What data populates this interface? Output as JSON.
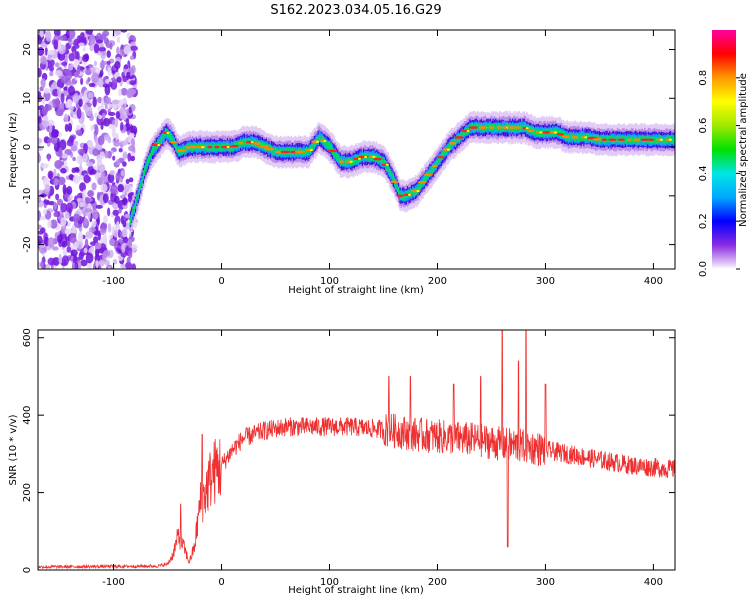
{
  "title": "S162.2023.034.05.16.G29",
  "colors": {
    "snr_line": "#ee3030",
    "spectrum_noise": "#7a1ee0",
    "axes": "#000000"
  },
  "chart_data": [
    {
      "type": "heatmap",
      "xlabel": "Height of straight line (km)",
      "ylabel": "Frequency (Hz)",
      "xlim": [
        -170,
        420
      ],
      "ylim": [
        -25,
        24
      ],
      "x_ticks": [
        -100,
        0,
        100,
        200,
        300,
        400
      ],
      "y_ticks": [
        -20,
        -10,
        0,
        10,
        20
      ],
      "colorbar": {
        "label": "Normalized spectral amplitude",
        "range": [
          0,
          1
        ],
        "ticks": [
          0.0,
          0.2,
          0.4,
          0.6,
          0.8
        ],
        "colormap": "rainbow"
      },
      "ridge": {
        "x": [
          -85,
          -78,
          -72,
          -65,
          -58,
          -52,
          -47,
          -40,
          -30,
          -20,
          -10,
          0,
          10,
          20,
          30,
          40,
          50,
          60,
          70,
          80,
          90,
          95,
          100,
          110,
          120,
          130,
          140,
          150,
          160,
          165,
          170,
          180,
          190,
          200,
          210,
          220,
          230,
          240,
          250,
          260,
          270,
          280,
          290,
          300,
          310,
          320,
          330,
          340,
          350,
          360,
          380,
          400,
          420
        ],
        "y": [
          -15,
          -10,
          -5,
          -1,
          1,
          3,
          2,
          -1,
          0,
          0,
          0,
          0,
          0,
          1,
          1,
          0,
          -1,
          -1,
          -1,
          -1,
          2,
          1,
          0,
          -3,
          -3,
          -2,
          -2,
          -3,
          -7,
          -10,
          -10,
          -9,
          -6,
          -3,
          0,
          2,
          4,
          4,
          4,
          4,
          4,
          4,
          3,
          3,
          3,
          2,
          2,
          2,
          1.5,
          1.5,
          1.5,
          1.5,
          1.5
        ]
      },
      "noise_region_x": [
        -170,
        -80
      ]
    },
    {
      "type": "line",
      "xlabel": "Height of straight line (km)",
      "ylabel": "SNR (10 * v/v)",
      "xlim": [
        -170,
        420
      ],
      "ylim": [
        0,
        620
      ],
      "x_ticks": [
        -100,
        0,
        100,
        200,
        300,
        400
      ],
      "y_ticks": [
        0,
        200,
        400,
        600
      ],
      "series": [
        {
          "envelope_x": [
            -170,
            -60,
            -50,
            -45,
            -40,
            -35,
            -30,
            -25,
            -20,
            -15,
            -10,
            -5,
            0,
            10,
            20,
            40,
            60,
            80,
            100,
            120,
            140,
            160,
            180,
            200,
            220,
            240,
            260,
            280,
            300,
            320,
            340,
            360,
            380,
            400,
            420
          ],
          "envelope_y": [
            8,
            10,
            15,
            40,
            90,
            60,
            20,
            60,
            170,
            200,
            240,
            260,
            270,
            310,
            340,
            360,
            370,
            370,
            370,
            370,
            365,
            360,
            350,
            345,
            340,
            335,
            325,
            320,
            310,
            300,
            290,
            280,
            270,
            265,
            260
          ],
          "spikes_x": [
            -38,
            -18,
            155,
            175,
            215,
            240,
            260,
            265,
            275,
            282,
            300
          ],
          "spikes_y": [
            170,
            350,
            500,
            500,
            480,
            500,
            630,
            60,
            540,
            620,
            480
          ]
        }
      ]
    }
  ]
}
